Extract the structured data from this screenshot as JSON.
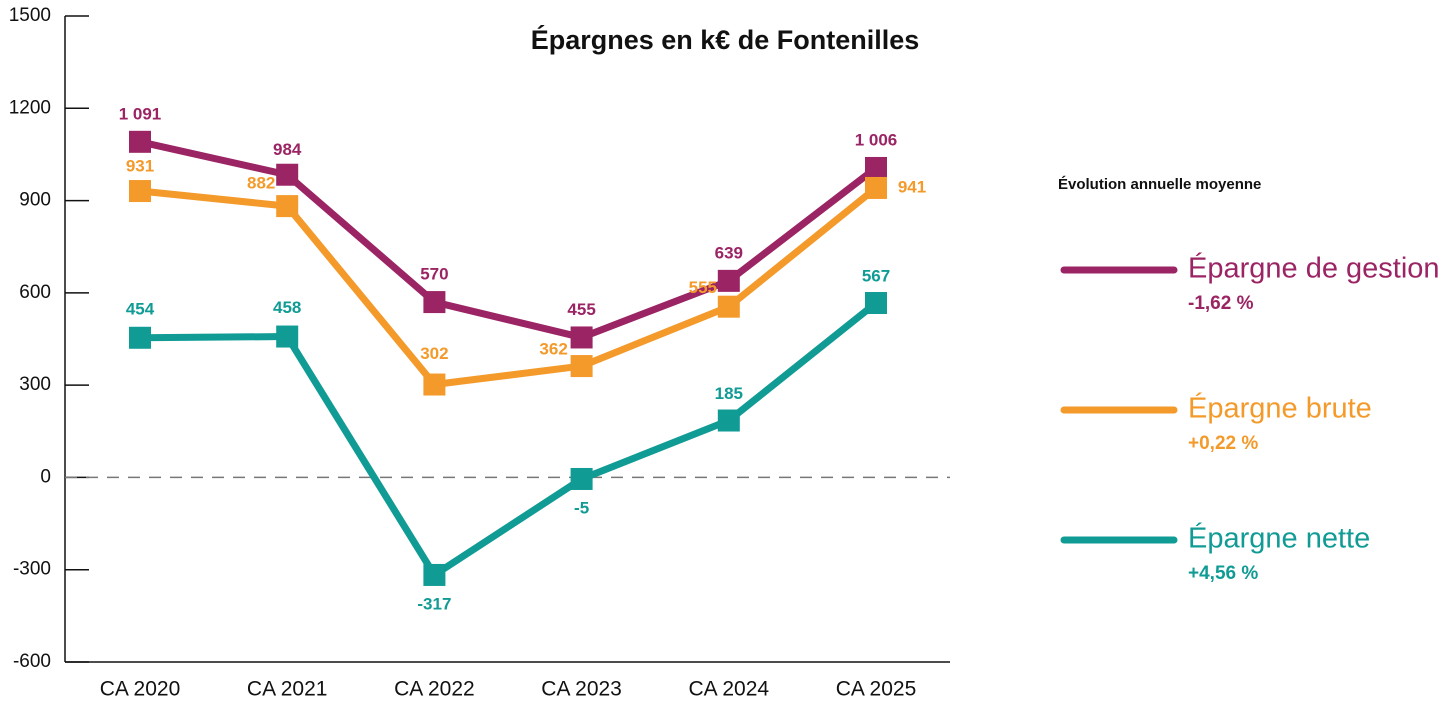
{
  "chart_data": {
    "type": "line",
    "title": "Épargnes en k€ de Fontenilles",
    "categories": [
      "CA 2020",
      "CA 2021",
      "CA 2022",
      "CA 2023",
      "CA 2024",
      "CA 2025"
    ],
    "series": [
      {
        "name": "Épargne de gestion",
        "color": "#9b2464",
        "values": [
          1091,
          984,
          570,
          455,
          639,
          1006
        ],
        "value_labels": [
          "1 091",
          "984",
          "570",
          "455",
          "639",
          "1 006"
        ],
        "evolution": "-1,62 %"
      },
      {
        "name": "Épargne brute",
        "color": "#f39a2b",
        "values": [
          931,
          882,
          302,
          362,
          555,
          941
        ],
        "evolution": "+0,22 %"
      },
      {
        "name": "Épargne nette",
        "color": "#109b95",
        "values": [
          454,
          458,
          -317,
          -5,
          185,
          567
        ],
        "evolution": "+4,56 %"
      }
    ],
    "legend_title": "Évolution annuelle moyenne",
    "ylim": [
      -600,
      1500
    ],
    "yticks": [
      -600,
      -300,
      0,
      300,
      600,
      900,
      1200,
      1500
    ],
    "zero_line": "dashed"
  }
}
